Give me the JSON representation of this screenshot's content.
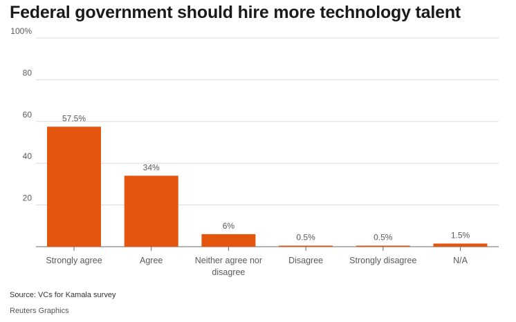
{
  "title": "Federal government should hire more technology talent",
  "source": "Source: VCs for Kamala survey",
  "credit": "Reuters Graphics",
  "colors": {
    "bar": "#e4550e",
    "grid": "#d9d9d9",
    "axis": "#666666",
    "text": "#595959"
  },
  "chart_data": {
    "type": "bar",
    "title": "Federal government should hire more technology talent",
    "categories": [
      "Strongly agree",
      "Agree",
      "Neither agree nor disagree",
      "Disagree",
      "Strongly disagree",
      "N/A"
    ],
    "category_lines": [
      [
        "Strongly agree"
      ],
      [
        "Agree"
      ],
      [
        "Neither agree nor",
        "disagree"
      ],
      [
        "Disagree"
      ],
      [
        "Strongly disagree"
      ],
      [
        "N/A"
      ]
    ],
    "values": [
      57.5,
      34,
      6,
      0.5,
      0.5,
      1.5
    ],
    "value_labels": [
      "57.5%",
      "34%",
      "6%",
      "0.5%",
      "0.5%",
      "1.5%"
    ],
    "yticks": [
      20,
      40,
      60,
      80,
      100
    ],
    "ytick_labels": [
      "20",
      "40",
      "60",
      "80",
      "100%"
    ],
    "ylim": [
      0,
      100
    ],
    "grid": true,
    "xlabel": "",
    "ylabel": ""
  }
}
